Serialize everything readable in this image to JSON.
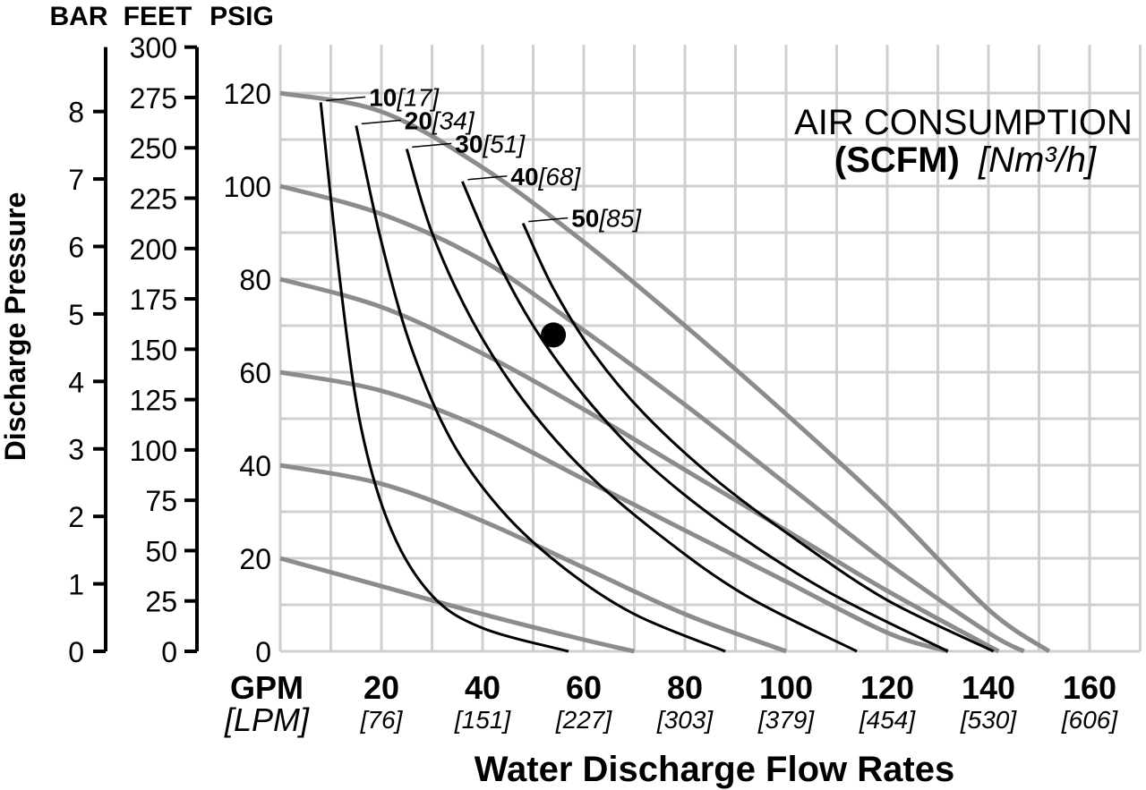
{
  "chart_data": {
    "type": "line",
    "title": "AIR CONSUMPTION",
    "title_units_bold": "(SCFM)",
    "title_units_ital": "[Nm³/h]",
    "xlabel": "Water Discharge Flow Rates",
    "ylabel": "Discharge Pressure",
    "x_unit_primary": "GPM",
    "x_unit_secondary": "[LPM]",
    "xlim": [
      0,
      170
    ],
    "ylim": [
      0,
      125
    ],
    "grid": true,
    "x_ticks": [
      {
        "gpm": "20",
        "lpm": "[76]",
        "x": 20
      },
      {
        "gpm": "40",
        "lpm": "[151]",
        "x": 40
      },
      {
        "gpm": "60",
        "lpm": "[227]",
        "x": 60
      },
      {
        "gpm": "80",
        "lpm": "[303]",
        "x": 80
      },
      {
        "gpm": "100",
        "lpm": "[379]",
        "x": 100
      },
      {
        "gpm": "120",
        "lpm": "[454]",
        "x": 120
      },
      {
        "gpm": "140",
        "lpm": "[530]",
        "x": 140
      },
      {
        "gpm": "160",
        "lpm": "[606]",
        "x": 160
      }
    ],
    "psig_axis": {
      "label": "PSIG",
      "ticks": [
        "0",
        "20",
        "40",
        "60",
        "80",
        "100",
        "120"
      ],
      "values": [
        0,
        20,
        40,
        60,
        80,
        100,
        120
      ]
    },
    "feet_axis": {
      "label": "FEET",
      "ticks": [
        "0",
        "25",
        "50",
        "75",
        "100",
        "125",
        "150",
        "175",
        "200",
        "225",
        "250",
        "275",
        "300"
      ],
      "values": [
        0,
        25,
        50,
        75,
        100,
        125,
        150,
        175,
        200,
        225,
        250,
        275,
        300
      ]
    },
    "bar_axis": {
      "label": "BAR",
      "ticks": [
        "0",
        "1",
        "2",
        "3",
        "4",
        "5",
        "6",
        "7",
        "8"
      ],
      "values": [
        0,
        1,
        2,
        3,
        4,
        5,
        6,
        7,
        8
      ]
    },
    "pressure_series": [
      {
        "points": [
          [
            0,
            20
          ],
          [
            20,
            14
          ],
          [
            40,
            8
          ],
          [
            60,
            2.5
          ],
          [
            70,
            0
          ]
        ]
      },
      {
        "points": [
          [
            0,
            40
          ],
          [
            20,
            36
          ],
          [
            40,
            28
          ],
          [
            60,
            18
          ],
          [
            80,
            8
          ],
          [
            100,
            0
          ]
        ]
      },
      {
        "points": [
          [
            0,
            60
          ],
          [
            20,
            56
          ],
          [
            40,
            48
          ],
          [
            60,
            37
          ],
          [
            80,
            26
          ],
          [
            100,
            15
          ],
          [
            120,
            4
          ],
          [
            132,
            0
          ]
        ]
      },
      {
        "points": [
          [
            0,
            80
          ],
          [
            20,
            74
          ],
          [
            40,
            64
          ],
          [
            60,
            52
          ],
          [
            80,
            39
          ],
          [
            100,
            26
          ],
          [
            120,
            13
          ],
          [
            142,
            0
          ]
        ]
      },
      {
        "points": [
          [
            0,
            100
          ],
          [
            20,
            94
          ],
          [
            40,
            84
          ],
          [
            60,
            69
          ],
          [
            80,
            53
          ],
          [
            100,
            36
          ],
          [
            120,
            19
          ],
          [
            140,
            4
          ],
          [
            147,
            0
          ]
        ]
      },
      {
        "points": [
          [
            0,
            120
          ],
          [
            20,
            116
          ],
          [
            40,
            104
          ],
          [
            60,
            88
          ],
          [
            80,
            70
          ],
          [
            100,
            51
          ],
          [
            120,
            31
          ],
          [
            140,
            9
          ],
          [
            152,
            0
          ]
        ]
      }
    ],
    "air_series": [
      {
        "label": "10",
        "label_ital": "[17]",
        "points": [
          [
            8,
            118
          ],
          [
            12,
            78
          ],
          [
            16,
            48
          ],
          [
            22,
            26
          ],
          [
            30,
            12
          ],
          [
            40,
            5
          ],
          [
            57,
            0
          ]
        ]
      },
      {
        "label": "20",
        "label_ital": "[34]",
        "points": [
          [
            15,
            113
          ],
          [
            20,
            88
          ],
          [
            26,
            65
          ],
          [
            34,
            45
          ],
          [
            44,
            30
          ],
          [
            56,
            18
          ],
          [
            70,
            8
          ],
          [
            88,
            0
          ]
        ]
      },
      {
        "label": "30",
        "label_ital": "[51]",
        "points": [
          [
            25,
            108
          ],
          [
            30,
            90
          ],
          [
            38,
            71
          ],
          [
            48,
            54
          ],
          [
            60,
            39
          ],
          [
            75,
            25
          ],
          [
            92,
            12
          ],
          [
            114,
            0
          ]
        ]
      },
      {
        "label": "40",
        "label_ital": "[68]",
        "points": [
          [
            36,
            101
          ],
          [
            42,
            86
          ],
          [
            50,
            70
          ],
          [
            60,
            55
          ],
          [
            72,
            41
          ],
          [
            88,
            27
          ],
          [
            108,
            13
          ],
          [
            132,
            0
          ]
        ]
      },
      {
        "label": "50",
        "label_ital": "[85]",
        "points": [
          [
            48,
            92
          ],
          [
            54,
            78
          ],
          [
            62,
            64
          ],
          [
            72,
            51
          ],
          [
            86,
            37
          ],
          [
            102,
            24
          ],
          [
            120,
            11
          ],
          [
            141,
            0
          ]
        ]
      }
    ],
    "operating_point": {
      "x": 54,
      "y": 68
    }
  }
}
